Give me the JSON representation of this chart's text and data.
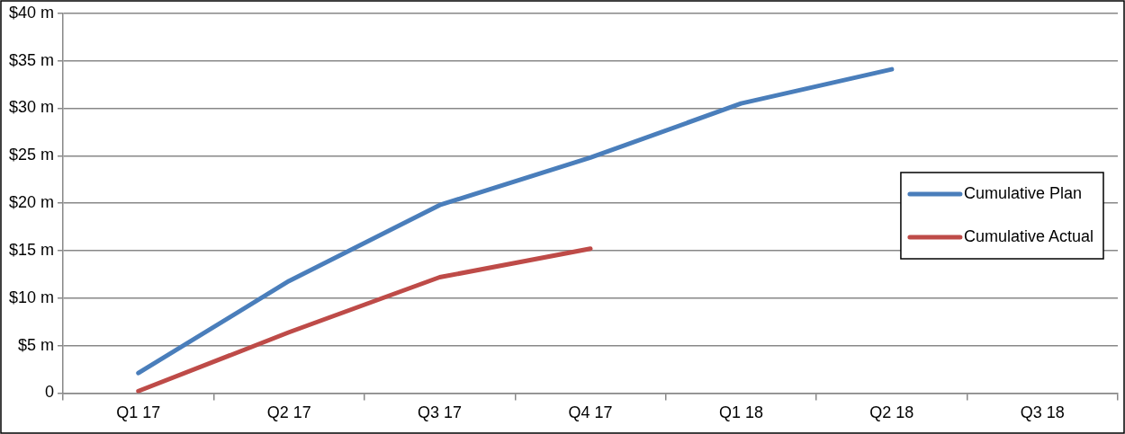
{
  "chart_data": {
    "type": "line",
    "categories": [
      "Q1 17",
      "Q2 17",
      "Q3 17",
      "Q4 17",
      "Q1 18",
      "Q2 18",
      "Q3 18"
    ],
    "series": [
      {
        "name": "Cumulative Plan",
        "color": "#4a7ebb",
        "values": [
          2.1,
          11.8,
          19.8,
          24.8,
          30.5,
          34.1,
          null
        ]
      },
      {
        "name": "Cumulative Actual",
        "color": "#be4b48",
        "values": [
          0.2,
          6.4,
          12.2,
          15.2,
          null,
          null,
          null
        ]
      }
    ],
    "ylim": [
      0,
      40
    ],
    "yticks": [
      {
        "value": 0,
        "label": "0"
      },
      {
        "value": 5,
        "label": "$5 m"
      },
      {
        "value": 10,
        "label": "$10 m"
      },
      {
        "value": 15,
        "label": "$15 m"
      },
      {
        "value": 20,
        "label": "$20 m"
      },
      {
        "value": 25,
        "label": "$25 m"
      },
      {
        "value": 30,
        "label": "$30 m"
      },
      {
        "value": 35,
        "label": "$35 m"
      },
      {
        "value": 40,
        "label": "$40 m"
      }
    ],
    "grid": "y",
    "legend": "right",
    "marker": "none",
    "line_style": "solid"
  }
}
